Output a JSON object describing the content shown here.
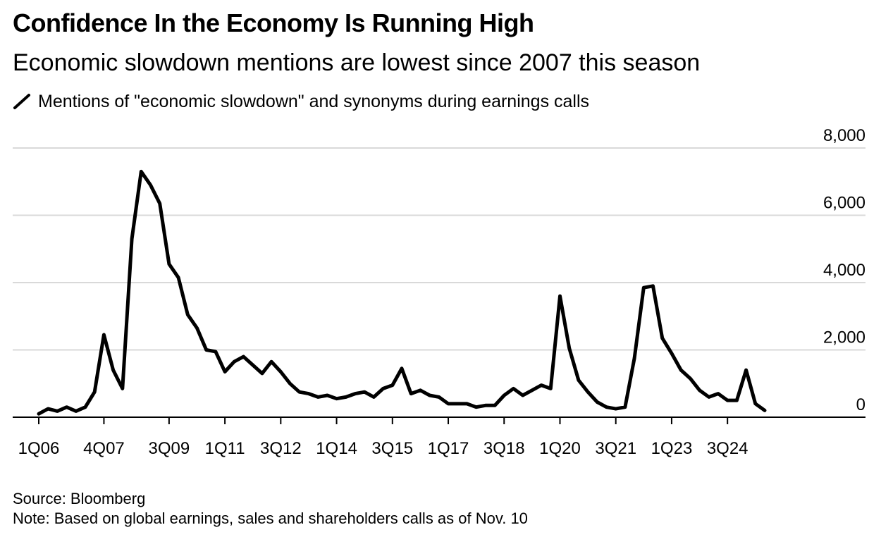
{
  "header": {
    "title": "Confidence In the Economy Is Running High",
    "subtitle": "Economic slowdown mentions are lowest since 2007 this season"
  },
  "footer": {
    "source": "Source: Bloomberg",
    "note": "Note: Based on global earnings, sales and shareholders calls as of Nov. 10"
  },
  "colors": {
    "line": "#000000",
    "grid": "#d9d9d9",
    "axis": "#000000"
  },
  "chart_data": {
    "type": "line",
    "grid": true,
    "legend_position": "top-left",
    "x_tick_labels": [
      "1Q06",
      "4Q07",
      "3Q09",
      "1Q11",
      "3Q12",
      "1Q14",
      "3Q15",
      "1Q17",
      "3Q18",
      "1Q20",
      "3Q21",
      "1Q23",
      "3Q24"
    ],
    "y_tick_labels": [
      "0",
      "2,000",
      "4,000",
      "6,000",
      "8,000"
    ],
    "ylim": [
      0,
      8000
    ],
    "y_axis_side": "right",
    "series": [
      {
        "name": "Mentions of \"economic slowdown\" and synonyms during earnings calls",
        "x": [
          "1Q06",
          "2Q06",
          "3Q06",
          "4Q06",
          "1Q07",
          "2Q07",
          "3Q07",
          "4Q07",
          "1Q08",
          "2Q08",
          "3Q08",
          "4Q08",
          "1Q09",
          "2Q09",
          "3Q09",
          "4Q09",
          "1Q10",
          "2Q10",
          "3Q10",
          "4Q10",
          "1Q11",
          "2Q11",
          "3Q11",
          "4Q11",
          "1Q12",
          "2Q12",
          "3Q12",
          "4Q12",
          "1Q13",
          "2Q13",
          "3Q13",
          "4Q13",
          "1Q14",
          "2Q14",
          "3Q14",
          "4Q14",
          "1Q15",
          "2Q15",
          "3Q15",
          "4Q15",
          "1Q16",
          "2Q16",
          "3Q16",
          "4Q16",
          "1Q17",
          "2Q17",
          "3Q17",
          "4Q17",
          "1Q18",
          "2Q18",
          "3Q18",
          "4Q18",
          "1Q19",
          "2Q19",
          "3Q19",
          "4Q19",
          "1Q20",
          "2Q20",
          "3Q20",
          "4Q20",
          "1Q21",
          "2Q21",
          "3Q21",
          "4Q21",
          "1Q22",
          "2Q22",
          "3Q22",
          "4Q22",
          "1Q23",
          "2Q23",
          "3Q23",
          "4Q23",
          "1Q24",
          "2Q24",
          "3Q24",
          "4Q24",
          "1Q25",
          "2Q25",
          "3Q25"
        ],
        "values": [
          100,
          250,
          180,
          300,
          180,
          300,
          750,
          2450,
          1400,
          850,
          5300,
          7300,
          6900,
          6350,
          4550,
          4150,
          3050,
          2650,
          2000,
          1950,
          1350,
          1650,
          1800,
          1550,
          1300,
          1650,
          1350,
          1000,
          750,
          700,
          600,
          650,
          550,
          600,
          700,
          750,
          600,
          850,
          950,
          1450,
          700,
          800,
          650,
          600,
          400,
          400,
          400,
          300,
          350,
          350,
          650,
          850,
          650,
          800,
          950,
          850,
          3600,
          2050,
          1100,
          750,
          450,
          300,
          250,
          300,
          1750,
          3850,
          3900,
          2350,
          1900,
          1400,
          1150,
          800,
          600,
          700,
          500,
          500,
          1400,
          400,
          200
        ]
      }
    ]
  }
}
